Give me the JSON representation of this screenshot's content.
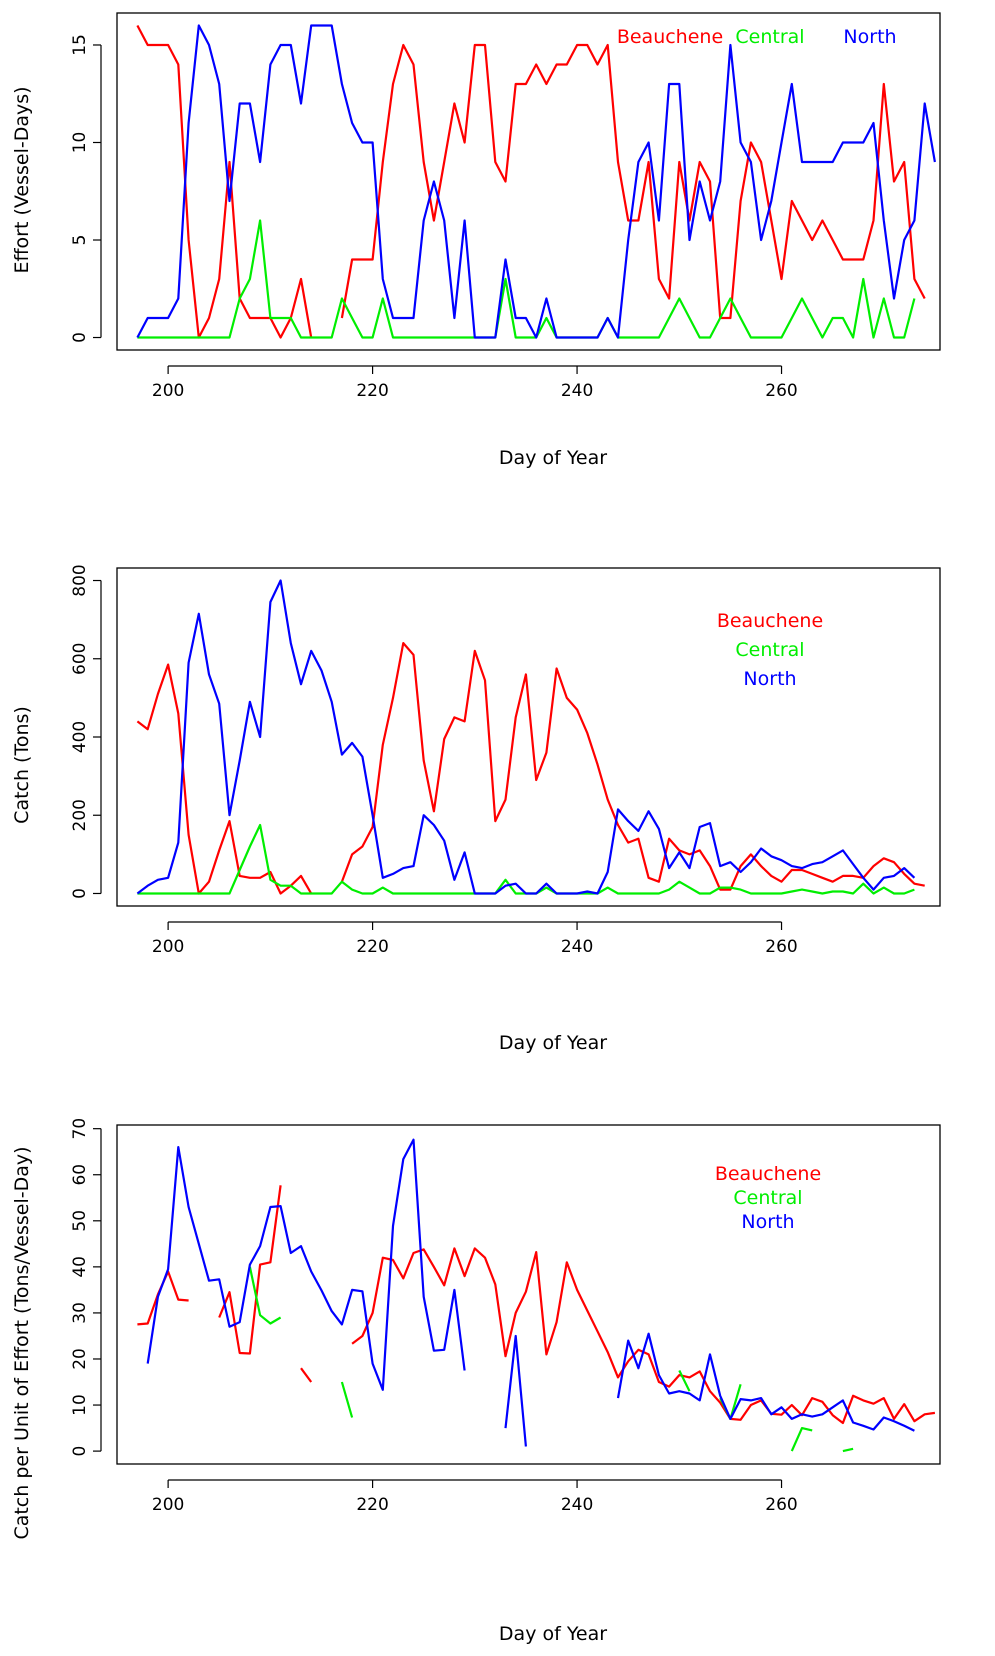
{
  "chart_data": [
    {
      "type": "line",
      "xlabel": "Day of Year",
      "ylabel": "Effort (Vessel-Days)",
      "xlim": [
        195,
        275.5
      ],
      "ylim": [
        -0.64,
        16.64
      ],
      "xticks": [
        200,
        220,
        240,
        260
      ],
      "yticks": [
        0,
        5,
        10,
        15
      ],
      "grid": false,
      "legend": {
        "placement": "top-right",
        "layout": "horizontal"
      },
      "x_start": 197,
      "series": [
        {
          "name": "Beauchene",
          "color": "#ff0000",
          "values": [
            16,
            15,
            15,
            15,
            14,
            5,
            0,
            1,
            3,
            9,
            2,
            1,
            1,
            1,
            0,
            1,
            3,
            0,
            null,
            null,
            1,
            4,
            4,
            4,
            9,
            13,
            15,
            14,
            9,
            6,
            9,
            12,
            10,
            15,
            15,
            9,
            8,
            13,
            13,
            14,
            13,
            14,
            14,
            15,
            15,
            14,
            15,
            9,
            6,
            6,
            9,
            3,
            2,
            9,
            6,
            9,
            8,
            1,
            1,
            7,
            10,
            9,
            6,
            3,
            7,
            6,
            5,
            6,
            5,
            4,
            4,
            4,
            6,
            13,
            8,
            9,
            3,
            2
          ]
        },
        {
          "name": "Central",
          "color": "#00ee00",
          "values": [
            0,
            0,
            0,
            0,
            0,
            0,
            0,
            0,
            0,
            0,
            2,
            3,
            6,
            1,
            1,
            1,
            0,
            0,
            0,
            0,
            2,
            1,
            0,
            0,
            2,
            0,
            0,
            0,
            0,
            0,
            0,
            0,
            0,
            0,
            0,
            0,
            3,
            0,
            0,
            0,
            1,
            0,
            0,
            0,
            0,
            0,
            1,
            0,
            0,
            0,
            0,
            0,
            1,
            2,
            1,
            0,
            0,
            1,
            2,
            1,
            0,
            0,
            0,
            0,
            1,
            2,
            1,
            0,
            1,
            1,
            0,
            3,
            0,
            2,
            0,
            0,
            2
          ]
        },
        {
          "name": "North",
          "color": "#0000ff",
          "values": [
            0,
            1,
            1,
            1,
            2,
            11,
            16,
            15,
            13,
            7,
            12,
            12,
            9,
            14,
            15,
            15,
            12,
            16,
            16,
            16,
            13,
            11,
            10,
            10,
            3,
            1,
            1,
            1,
            6,
            8,
            6,
            1,
            6,
            0,
            0,
            0,
            4,
            1,
            1,
            0,
            2,
            0,
            0,
            0,
            0,
            0,
            1,
            0,
            5,
            9,
            10,
            6,
            13,
            13,
            5,
            8,
            6,
            8,
            15,
            10,
            9,
            5,
            7,
            10,
            13,
            9,
            9,
            9,
            9,
            10,
            10,
            10,
            11,
            6,
            2,
            5,
            6,
            12,
            9
          ]
        }
      ]
    },
    {
      "type": "line",
      "xlabel": "Day of Year",
      "ylabel": "Catch (Tons)",
      "xlim": [
        195,
        275.5
      ],
      "ylim": [
        -32,
        832
      ],
      "xticks": [
        200,
        220,
        240,
        260
      ],
      "yticks": [
        0,
        200,
        400,
        600,
        800
      ],
      "grid": false,
      "legend": {
        "placement": "top-right",
        "layout": "vertical"
      },
      "x_start": 197,
      "series": [
        {
          "name": "Beauchene",
          "color": "#ff0000",
          "values": [
            440,
            420,
            510,
            585,
            460,
            150,
            0,
            30,
            110,
            185,
            45,
            40,
            40,
            55,
            0,
            20,
            45,
            0,
            null,
            null,
            30,
            100,
            120,
            170,
            380,
            500,
            640,
            610,
            340,
            210,
            395,
            450,
            440,
            620,
            545,
            185,
            240,
            450,
            560,
            290,
            360,
            575,
            500,
            470,
            410,
            330,
            240,
            175,
            130,
            140,
            40,
            30,
            140,
            110,
            100,
            110,
            70,
            10,
            10,
            70,
            100,
            70,
            45,
            30,
            60,
            60,
            50,
            40,
            30,
            45,
            45,
            40,
            70,
            90,
            80,
            50,
            25,
            20
          ]
        },
        {
          "name": "Central",
          "color": "#00ee00",
          "values": [
            0,
            0,
            0,
            0,
            0,
            0,
            0,
            0,
            0,
            0,
            60,
            120,
            175,
            35,
            20,
            20,
            0,
            0,
            0,
            0,
            30,
            10,
            0,
            0,
            15,
            0,
            0,
            0,
            0,
            0,
            0,
            0,
            0,
            0,
            0,
            0,
            35,
            0,
            0,
            0,
            15,
            0,
            0,
            0,
            0,
            0,
            15,
            0,
            0,
            0,
            0,
            0,
            10,
            30,
            15,
            0,
            0,
            15,
            15,
            10,
            0,
            0,
            0,
            0,
            5,
            10,
            5,
            0,
            5,
            5,
            0,
            25,
            0,
            15,
            0,
            0,
            10
          ]
        },
        {
          "name": "North",
          "color": "#0000ff",
          "values": [
            0,
            20,
            35,
            40,
            130,
            590,
            715,
            560,
            485,
            200,
            340,
            490,
            400,
            745,
            800,
            640,
            535,
            620,
            570,
            490,
            355,
            385,
            350,
            200,
            40,
            50,
            65,
            70,
            200,
            175,
            135,
            35,
            105,
            0,
            0,
            0,
            20,
            25,
            0,
            0,
            25,
            0,
            0,
            0,
            5,
            0,
            55,
            215,
            185,
            160,
            210,
            165,
            65,
            105,
            65,
            170,
            180,
            70,
            80,
            55,
            80,
            115,
            95,
            85,
            70,
            65,
            75,
            80,
            95,
            110,
            75,
            40,
            10,
            40,
            45,
            65,
            40
          ]
        }
      ]
    },
    {
      "type": "line",
      "xlabel": "Day of Year",
      "ylabel": "Catch per Unit of Effort (Tons/Vessel-Day)",
      "xlim": [
        195,
        275.5
      ],
      "ylim": [
        -2.8,
        70.8
      ],
      "xticks": [
        200,
        220,
        240,
        260
      ],
      "yticks": [
        0,
        10,
        20,
        30,
        40,
        50,
        60,
        70
      ],
      "grid": false,
      "legend": {
        "placement": "top-right",
        "layout": "vertical"
      },
      "x_start": 197,
      "series": [
        {
          "name": "Beauchene",
          "color": "#ff0000",
          "values": [
            27.5,
            27.7,
            34,
            39,
            32.9,
            32.7,
            null,
            null,
            29,
            34.5,
            21.3,
            21.2,
            40.5,
            41,
            57.7,
            null,
            18,
            15,
            null,
            null,
            null,
            23.3,
            25,
            30,
            42,
            41.5,
            37.5,
            43,
            43.8,
            40,
            36,
            44,
            38,
            44,
            42,
            36.2,
            20.6,
            30,
            34.6,
            43.2,
            21,
            28,
            41,
            35,
            30.5,
            26,
            21.5,
            16,
            19.5,
            22,
            21,
            15,
            14,
            16.5,
            16,
            17.3,
            13,
            10.5,
            7,
            6.8,
            10,
            11,
            8.1,
            7.9,
            10,
            7.8,
            11.5,
            10.7,
            7.8,
            6.1,
            12,
            11,
            10.3,
            11.5,
            7,
            10.2,
            6.5,
            8,
            8.3
          ]
        },
        {
          "name": "Central",
          "color": "#00ee00",
          "values": [
            null,
            null,
            null,
            null,
            null,
            null,
            null,
            null,
            null,
            null,
            null,
            40,
            29.5,
            27.7,
            29,
            null,
            null,
            null,
            null,
            null,
            15,
            7.3,
            null,
            null,
            null,
            null,
            null,
            null,
            null,
            null,
            null,
            null,
            null,
            null,
            null,
            null,
            null,
            null,
            null,
            null,
            null,
            null,
            null,
            null,
            null,
            null,
            null,
            null,
            null,
            null,
            null,
            null,
            null,
            17.5,
            13,
            null,
            null,
            11.5,
            7,
            14.5,
            null,
            null,
            null,
            null,
            0,
            5,
            4.5,
            null,
            null,
            0,
            0.5,
            null,
            null,
            null,
            null,
            null,
            null
          ]
        },
        {
          "name": "North",
          "color": "#0000ff",
          "values": [
            null,
            19,
            33.5,
            39.5,
            66,
            53,
            45,
            37,
            37.3,
            27,
            28,
            40.5,
            44.5,
            53,
            53.2,
            43,
            44.5,
            39,
            34.9,
            30.4,
            27.5,
            35,
            34.7,
            19,
            13.3,
            48.9,
            63.4,
            67.6,
            33.5,
            21.8,
            22,
            35,
            17.5,
            null,
            null,
            null,
            5,
            25,
            1,
            null,
            null,
            null,
            null,
            null,
            null,
            null,
            null,
            11.5,
            24,
            18,
            25.5,
            16.5,
            12.5,
            13,
            12.5,
            11,
            21,
            12,
            7,
            11.3,
            11,
            11.5,
            8,
            9.5,
            7,
            8,
            7.5,
            8,
            9.5,
            11,
            6.2,
            5.5,
            4.7,
            7.3,
            6.5,
            5.5,
            4.4
          ]
        }
      ]
    }
  ],
  "legend_labels": [
    "Beauchene",
    "Central",
    "North"
  ],
  "colors": {
    "beauchene": "#ff0000",
    "central": "#00ee00",
    "north": "#0000ff",
    "frame": "#000000"
  }
}
